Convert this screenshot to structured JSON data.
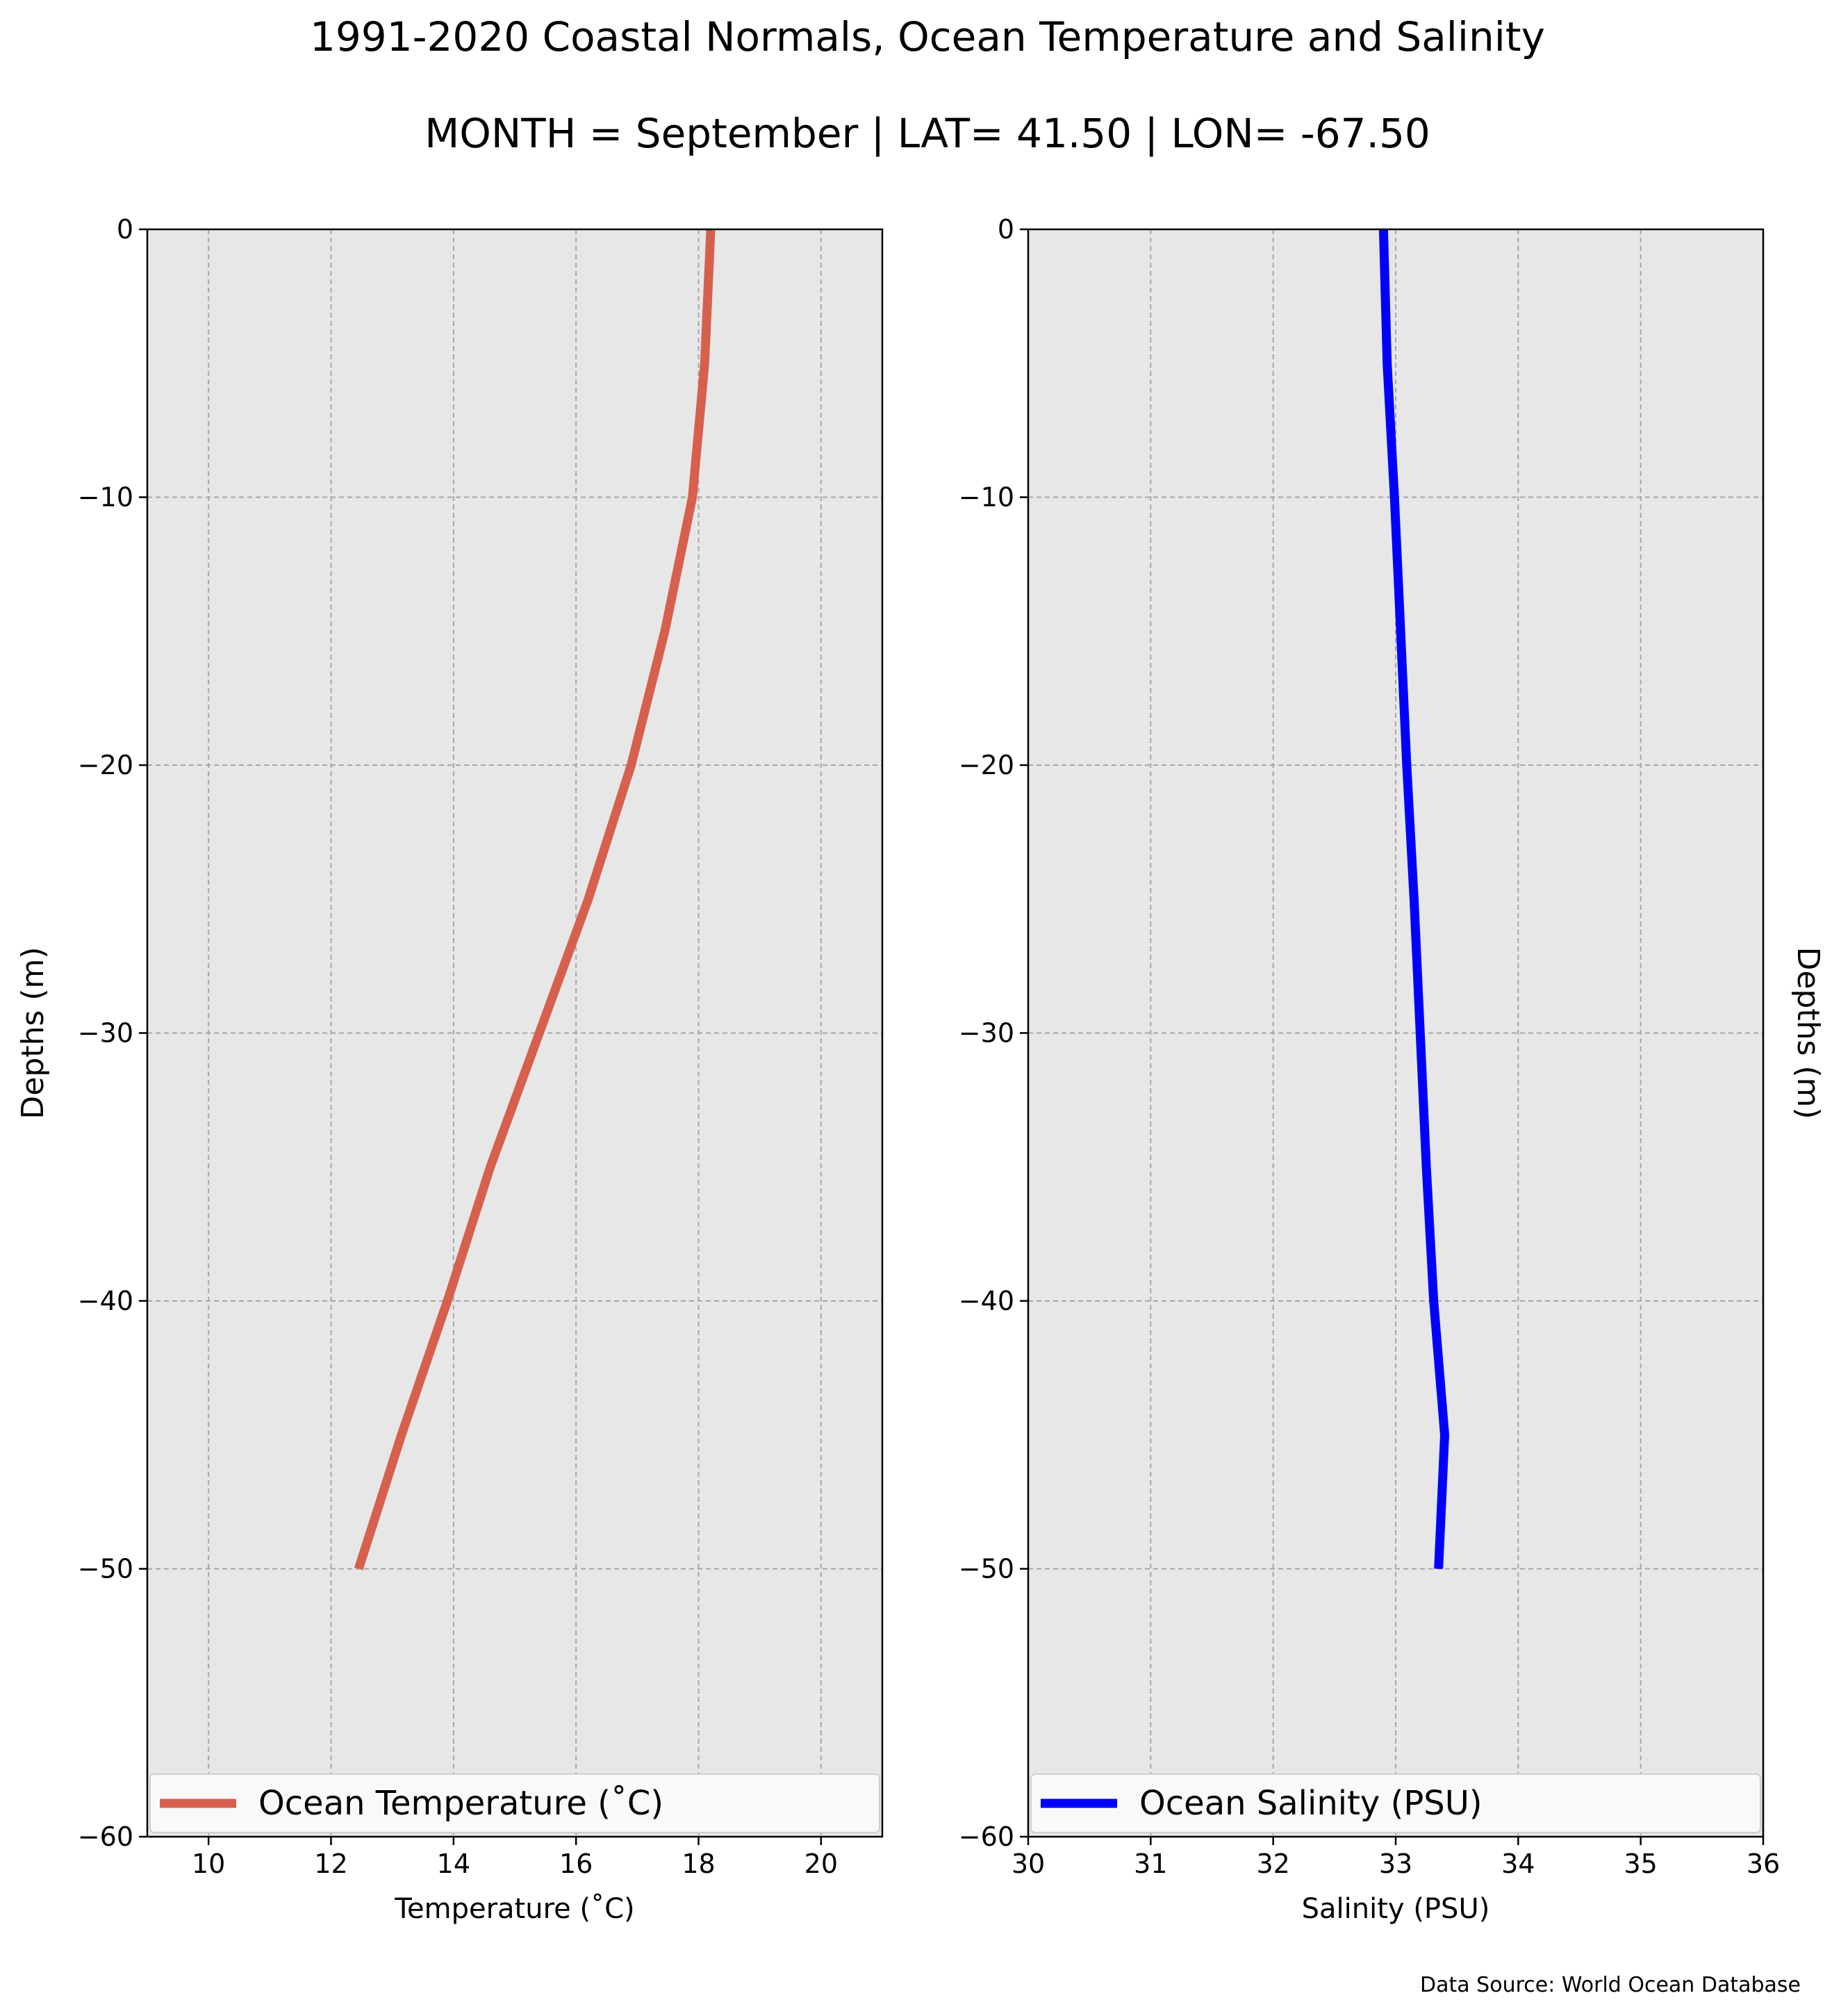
{
  "title": "1991-2020 Coastal Normals, Ocean Temperature and Salinity",
  "subtitle": "MONTH = September | LAT= 41.50 | LON= -67.50",
  "source": "Data Source: World Ocean Database",
  "colors": {
    "background": "#e7e7e7",
    "temperature": "#d6604d",
    "salinity": "#0000ff",
    "grid": "#a6a6a6"
  },
  "chart_data": [
    {
      "type": "line",
      "xlabel": "Temperature ($^\\circ$C)",
      "xlabel_display": "Temperature (˚C)",
      "ylabel": "Depths (m)",
      "xlim": [
        9,
        21
      ],
      "ylim": [
        -60,
        0
      ],
      "xticks": [
        10,
        12,
        14,
        16,
        18,
        20
      ],
      "yticks": [
        0,
        -10,
        -20,
        -30,
        -40,
        -50,
        -60
      ],
      "grid": true,
      "legend": "bottom",
      "series": [
        {
          "name": "Ocean Temperature (˚C)",
          "color": "#d6604d",
          "x": [
            18.2,
            18.1,
            17.9,
            17.45,
            16.9,
            16.2,
            15.4,
            14.6,
            13.9,
            13.15,
            12.45
          ],
          "y": [
            0,
            -5,
            -10,
            -15,
            -20,
            -25,
            -30,
            -35,
            -40,
            -45,
            -50
          ]
        }
      ]
    },
    {
      "type": "line",
      "xlabel": "Salinity (PSU)",
      "ylabel": "Depths (m)",
      "ylabel_position": "right",
      "xlim": [
        30,
        36
      ],
      "ylim": [
        -60,
        0
      ],
      "xticks": [
        30,
        31,
        32,
        33,
        34,
        35,
        36
      ],
      "yticks": [
        0,
        -10,
        -20,
        -30,
        -40,
        -50,
        -60
      ],
      "grid": true,
      "legend": "bottom",
      "series": [
        {
          "name": "Ocean Salinity (PSU)",
          "color": "#0000ff",
          "x": [
            32.9,
            32.93,
            32.99,
            33.04,
            33.09,
            33.15,
            33.2,
            33.25,
            33.31,
            33.4,
            33.35
          ],
          "y": [
            0,
            -5,
            -10,
            -15,
            -20,
            -25,
            -30,
            -35,
            -40,
            -45,
            -50
          ]
        }
      ]
    }
  ]
}
